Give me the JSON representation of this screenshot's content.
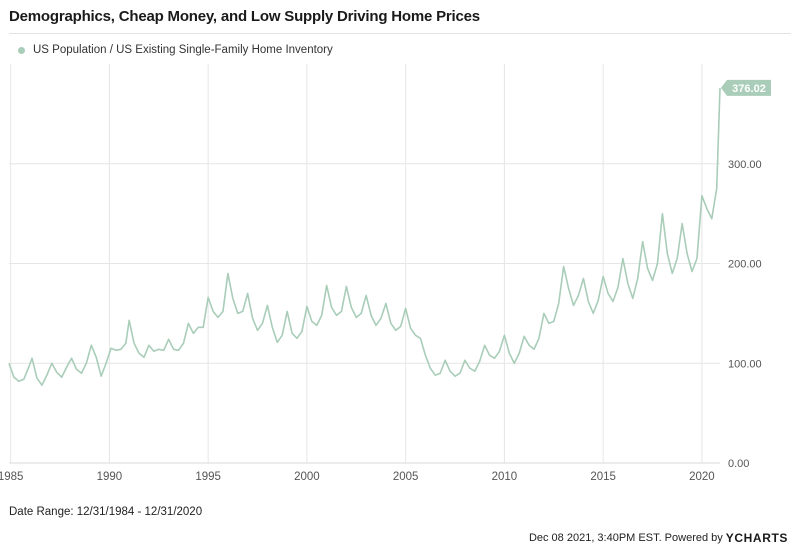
{
  "title": "Demographics, Cheap Money, and Low Supply Driving Home Prices",
  "legend_label": "US Population / US Existing Single-Family Home Inventory",
  "date_range": "Date Range: 12/31/1984 - 12/31/2020",
  "footer_text": "Dec 08 2021, 3:40PM EST. Powered by",
  "brand_first": "Y",
  "brand": "CHARTS",
  "colors": {
    "series": "#a9cdb8",
    "grid": "#e6e6e6",
    "axis_text": "#555555"
  },
  "chart_data": {
    "type": "line",
    "title": "Demographics, Cheap Money, and Low Supply Driving Home Prices",
    "series": [
      {
        "name": "US Population / US Existing Single-Family Home Inventory",
        "last_value_label": "376.02",
        "points": [
          [
            "1984-12",
            100
          ],
          [
            "1985-03",
            86
          ],
          [
            "1985-06",
            82
          ],
          [
            "1985-09",
            84
          ],
          [
            "1985-12",
            96
          ],
          [
            "1986-02",
            105
          ],
          [
            "1986-05",
            85
          ],
          [
            "1986-08",
            78
          ],
          [
            "1986-11",
            88
          ],
          [
            "1987-02",
            100
          ],
          [
            "1987-05",
            91
          ],
          [
            "1987-08",
            86
          ],
          [
            "1987-11",
            96
          ],
          [
            "1988-02",
            105
          ],
          [
            "1988-05",
            94
          ],
          [
            "1988-08",
            90
          ],
          [
            "1988-11",
            100
          ],
          [
            "1989-02",
            118
          ],
          [
            "1989-05",
            106
          ],
          [
            "1989-08",
            87
          ],
          [
            "1989-11",
            100
          ],
          [
            "1990-02",
            115
          ],
          [
            "1990-05",
            113
          ],
          [
            "1990-08",
            114
          ],
          [
            "1990-11",
            120
          ],
          [
            "1991-01",
            143
          ],
          [
            "1991-04",
            120
          ],
          [
            "1991-07",
            110
          ],
          [
            "1991-10",
            106
          ],
          [
            "1992-01",
            118
          ],
          [
            "1992-04",
            112
          ],
          [
            "1992-07",
            114
          ],
          [
            "1992-10",
            113
          ],
          [
            "1993-01",
            124
          ],
          [
            "1993-04",
            114
          ],
          [
            "1993-07",
            113
          ],
          [
            "1993-10",
            120
          ],
          [
            "1994-01",
            140
          ],
          [
            "1994-04",
            130
          ],
          [
            "1994-07",
            136
          ],
          [
            "1994-10",
            136
          ],
          [
            "1995-01",
            166
          ],
          [
            "1995-04",
            152
          ],
          [
            "1995-07",
            146
          ],
          [
            "1995-10",
            152
          ],
          [
            "1996-01",
            190
          ],
          [
            "1996-04",
            165
          ],
          [
            "1996-07",
            150
          ],
          [
            "1996-10",
            152
          ],
          [
            "1997-01",
            170
          ],
          [
            "1997-04",
            145
          ],
          [
            "1997-07",
            133
          ],
          [
            "1997-10",
            140
          ],
          [
            "1998-01",
            158
          ],
          [
            "1998-04",
            136
          ],
          [
            "1998-07",
            121
          ],
          [
            "1998-10",
            128
          ],
          [
            "1999-01",
            152
          ],
          [
            "1999-04",
            130
          ],
          [
            "1999-07",
            125
          ],
          [
            "1999-10",
            132
          ],
          [
            "2000-01",
            157
          ],
          [
            "2000-04",
            142
          ],
          [
            "2000-07",
            138
          ],
          [
            "2000-10",
            148
          ],
          [
            "2001-01",
            178
          ],
          [
            "2001-04",
            156
          ],
          [
            "2001-07",
            148
          ],
          [
            "2001-10",
            152
          ],
          [
            "2002-01",
            177
          ],
          [
            "2002-04",
            156
          ],
          [
            "2002-07",
            146
          ],
          [
            "2002-10",
            150
          ],
          [
            "2003-01",
            168
          ],
          [
            "2003-04",
            148
          ],
          [
            "2003-07",
            138
          ],
          [
            "2003-10",
            145
          ],
          [
            "2004-01",
            160
          ],
          [
            "2004-04",
            140
          ],
          [
            "2004-07",
            133
          ],
          [
            "2004-10",
            137
          ],
          [
            "2005-01",
            155
          ],
          [
            "2005-04",
            135
          ],
          [
            "2005-07",
            128
          ],
          [
            "2005-10",
            125
          ],
          [
            "2006-01",
            108
          ],
          [
            "2006-04",
            95
          ],
          [
            "2006-07",
            88
          ],
          [
            "2006-10",
            90
          ],
          [
            "2007-01",
            103
          ],
          [
            "2007-04",
            92
          ],
          [
            "2007-07",
            87
          ],
          [
            "2007-10",
            90
          ],
          [
            "2008-01",
            103
          ],
          [
            "2008-04",
            95
          ],
          [
            "2008-07",
            92
          ],
          [
            "2008-10",
            102
          ],
          [
            "2009-01",
            118
          ],
          [
            "2009-04",
            108
          ],
          [
            "2009-07",
            105
          ],
          [
            "2009-10",
            112
          ],
          [
            "2010-01",
            128
          ],
          [
            "2010-04",
            110
          ],
          [
            "2010-07",
            100
          ],
          [
            "2010-10",
            110
          ],
          [
            "2011-01",
            127
          ],
          [
            "2011-04",
            118
          ],
          [
            "2011-07",
            114
          ],
          [
            "2011-10",
            125
          ],
          [
            "2012-01",
            150
          ],
          [
            "2012-04",
            140
          ],
          [
            "2012-07",
            142
          ],
          [
            "2012-10",
            160
          ],
          [
            "2013-01",
            197
          ],
          [
            "2013-04",
            175
          ],
          [
            "2013-07",
            158
          ],
          [
            "2013-10",
            168
          ],
          [
            "2014-01",
            185
          ],
          [
            "2014-04",
            162
          ],
          [
            "2014-07",
            150
          ],
          [
            "2014-10",
            163
          ],
          [
            "2015-01",
            187
          ],
          [
            "2015-04",
            170
          ],
          [
            "2015-07",
            162
          ],
          [
            "2015-10",
            176
          ],
          [
            "2016-01",
            205
          ],
          [
            "2016-04",
            180
          ],
          [
            "2016-07",
            165
          ],
          [
            "2016-10",
            185
          ],
          [
            "2017-01",
            222
          ],
          [
            "2017-04",
            195
          ],
          [
            "2017-07",
            183
          ],
          [
            "2017-10",
            200
          ],
          [
            "2018-01",
            250
          ],
          [
            "2018-04",
            210
          ],
          [
            "2018-07",
            190
          ],
          [
            "2018-10",
            205
          ],
          [
            "2019-01",
            240
          ],
          [
            "2019-04",
            210
          ],
          [
            "2019-07",
            192
          ],
          [
            "2019-10",
            205
          ],
          [
            "2020-01",
            268
          ],
          [
            "2020-04",
            255
          ],
          [
            "2020-07",
            245
          ],
          [
            "2020-10",
            275
          ],
          [
            "2020-12",
            376.02
          ]
        ]
      }
    ],
    "x_ticks": [
      "1985",
      "1990",
      "1995",
      "2000",
      "2005",
      "2010",
      "2015",
      "2020"
    ],
    "y_ticks": [
      "0.00",
      "100.00",
      "200.00",
      "300.00"
    ],
    "y_range": [
      0,
      400
    ],
    "x_range": [
      "1984-12",
      "2020-12"
    ],
    "grid": true,
    "legend_position": "top-left"
  }
}
